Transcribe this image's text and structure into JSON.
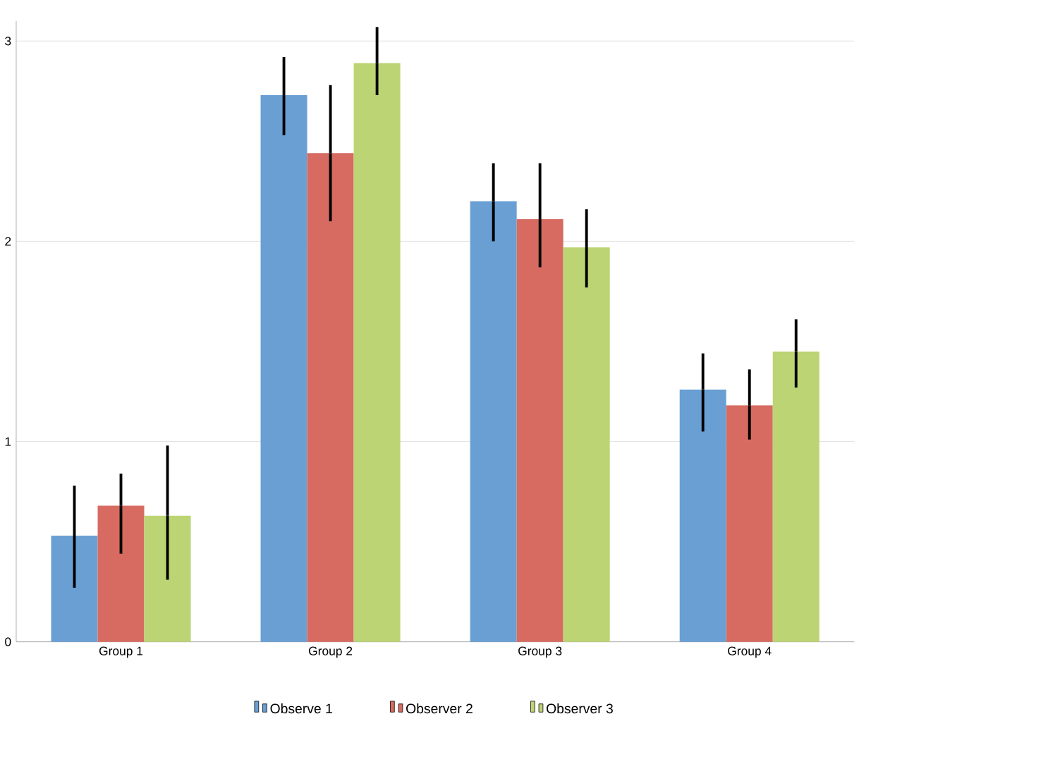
{
  "chart_data": {
    "type": "bar",
    "categories": [
      "Group 1",
      "Group 2",
      "Group 3",
      "Group 4"
    ],
    "series": [
      {
        "name": "Observe 1",
        "color": "#6a9fd4",
        "values": [
          0.53,
          2.73,
          2.2,
          1.26
        ],
        "errors": [
          [
            0.27,
            0.78
          ],
          [
            2.53,
            2.92
          ],
          [
            2.0,
            2.39
          ],
          [
            1.05,
            1.44
          ]
        ]
      },
      {
        "name": "Observer 2",
        "color": "#d76b61",
        "values": [
          0.68,
          2.44,
          2.11,
          1.18
        ],
        "errors": [
          [
            0.44,
            0.84
          ],
          [
            2.1,
            2.78
          ],
          [
            1.87,
            2.39
          ],
          [
            1.01,
            1.36
          ]
        ]
      },
      {
        "name": "Observer 3",
        "color": "#bcd474",
        "values": [
          0.63,
          2.89,
          1.97,
          1.45
        ],
        "errors": [
          [
            0.31,
            0.98
          ],
          [
            2.73,
            3.07
          ],
          [
            1.77,
            2.16
          ],
          [
            1.27,
            1.61
          ]
        ]
      }
    ],
    "ylim": [
      0,
      3.1
    ],
    "yticks": [
      0,
      1,
      2,
      3
    ],
    "grid": "y",
    "legend": "bottom"
  }
}
